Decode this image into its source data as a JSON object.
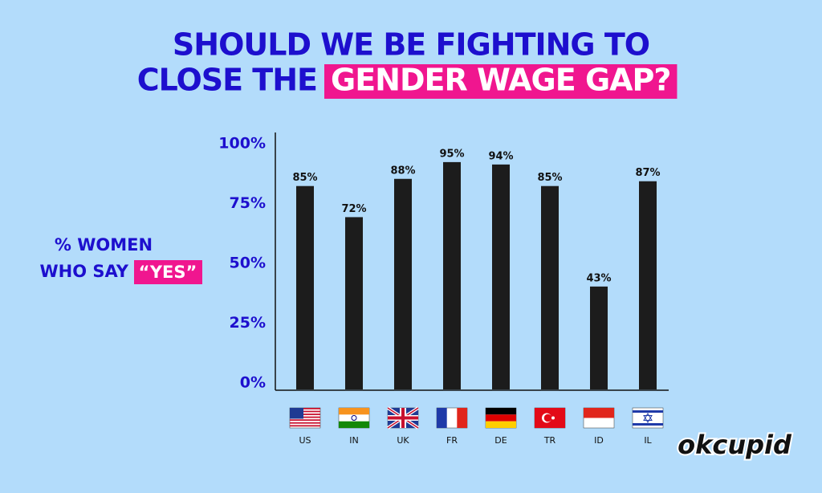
{
  "chart_data": {
    "type": "bar",
    "title": [
      "SHOULD WE BE FIGHTING TO",
      "CLOSE THE",
      "GENDER WAGE GAP?"
    ],
    "y_label": [
      "% WOMEN",
      "WHO SAY",
      "“YES”"
    ],
    "categories": [
      "US",
      "IN",
      "UK",
      "FR",
      "DE",
      "TR",
      "ID",
      "IL"
    ],
    "values": [
      85,
      72,
      88,
      95,
      94,
      85,
      43,
      87
    ],
    "value_labels": [
      "85%",
      "72%",
      "88%",
      "95%",
      "94%",
      "85%",
      "43%",
      "87%"
    ],
    "color": "#1c1c1c",
    "ylim": [
      0,
      100
    ],
    "yticks": [
      {
        "value": 0,
        "label": "0%"
      },
      {
        "value": 25,
        "label": "25%"
      },
      {
        "value": 50,
        "label": "50%"
      },
      {
        "value": 75,
        "label": "75%"
      },
      {
        "value": 100,
        "label": "100%"
      }
    ],
    "grid": false,
    "logo": "okcupid"
  }
}
